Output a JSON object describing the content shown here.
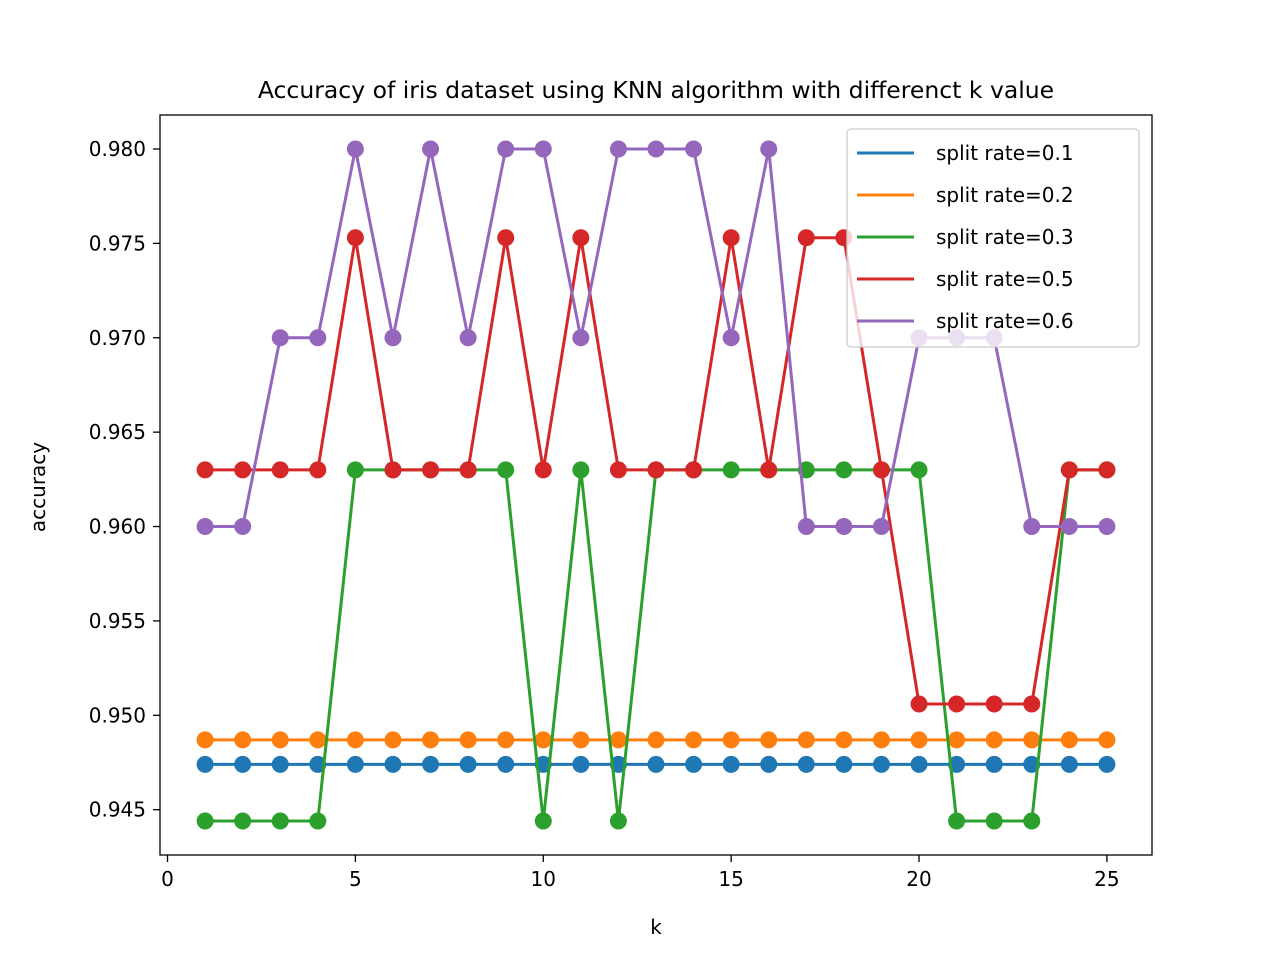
{
  "chart_data": {
    "type": "line",
    "title": "Accuracy of iris dataset using KNN algorithm with differenct k value",
    "xlabel": "k",
    "ylabel": "accuracy",
    "xlim": [
      -0.2,
      26.2
    ],
    "ylim": [
      0.9426,
      0.9818
    ],
    "xticks": [
      0,
      5,
      10,
      15,
      20,
      25
    ],
    "xtick_labels": [
      "0",
      "5",
      "10",
      "15",
      "20",
      "25"
    ],
    "yticks": [
      0.945,
      0.95,
      0.955,
      0.96,
      0.965,
      0.97,
      0.975,
      0.98
    ],
    "ytick_labels": [
      "0.945",
      "0.950",
      "0.955",
      "0.960",
      "0.965",
      "0.970",
      "0.975",
      "0.980"
    ],
    "grid": false,
    "legend_position": "upper-right",
    "x": [
      1,
      2,
      3,
      4,
      5,
      6,
      7,
      8,
      9,
      10,
      11,
      12,
      13,
      14,
      15,
      16,
      17,
      18,
      19,
      20,
      21,
      22,
      23,
      24,
      25
    ],
    "series": [
      {
        "name": "split rate=0.1",
        "color": "#1f77b4",
        "values": [
          0.9474,
          0.9474,
          0.9474,
          0.9474,
          0.9474,
          0.9474,
          0.9474,
          0.9474,
          0.9474,
          0.9474,
          0.9474,
          0.9474,
          0.9474,
          0.9474,
          0.9474,
          0.9474,
          0.9474,
          0.9474,
          0.9474,
          0.9474,
          0.9474,
          0.9474,
          0.9474,
          0.9474,
          0.9474
        ]
      },
      {
        "name": "split rate=0.2",
        "color": "#ff7f0e",
        "values": [
          0.9487,
          0.9487,
          0.9487,
          0.9487,
          0.9487,
          0.9487,
          0.9487,
          0.9487,
          0.9487,
          0.9487,
          0.9487,
          0.9487,
          0.9487,
          0.9487,
          0.9487,
          0.9487,
          0.9487,
          0.9487,
          0.9487,
          0.9487,
          0.9487,
          0.9487,
          0.9487,
          0.9487,
          0.9487
        ]
      },
      {
        "name": "split rate=0.3",
        "color": "#2ca02c",
        "values": [
          0.9444,
          0.9444,
          0.9444,
          0.9444,
          0.963,
          0.963,
          0.963,
          0.963,
          0.963,
          0.9444,
          0.963,
          0.9444,
          0.963,
          0.963,
          0.963,
          0.963,
          0.963,
          0.963,
          0.963,
          0.963,
          0.9444,
          0.9444,
          0.9444,
          0.963,
          0.963
        ]
      },
      {
        "name": "split rate=0.5",
        "color": "#d62728",
        "values": [
          0.963,
          0.963,
          0.963,
          0.963,
          0.9753,
          0.963,
          0.963,
          0.963,
          0.9753,
          0.963,
          0.9753,
          0.963,
          0.963,
          0.963,
          0.9753,
          0.963,
          0.9753,
          0.9753,
          0.963,
          0.9506,
          0.9506,
          0.9506,
          0.9506,
          0.963,
          0.963
        ]
      },
      {
        "name": "split rate=0.6",
        "color": "#9467bd",
        "values": [
          0.96,
          0.96,
          0.97,
          0.97,
          0.98,
          0.97,
          0.98,
          0.97,
          0.98,
          0.98,
          0.97,
          0.98,
          0.98,
          0.98,
          0.97,
          0.98,
          0.96,
          0.96,
          0.96,
          0.97,
          0.97,
          0.97,
          0.96,
          0.96,
          0.96
        ]
      }
    ]
  }
}
